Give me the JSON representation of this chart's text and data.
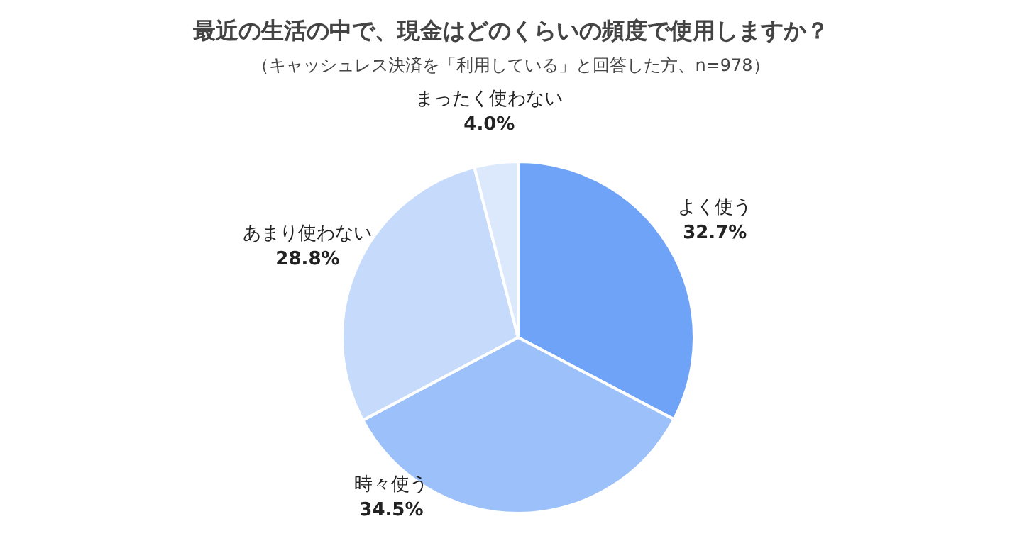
{
  "chart_data": {
    "type": "pie",
    "title": "最近の生活の中で、現金はどのくらいの頻度で使用しますか？",
    "subtitle": "（キャッシュレス決済を「利用している」と回答した方、n=978）",
    "categories": [
      "よく使う",
      "時々使う",
      "あまり使わない",
      "まったく使わない"
    ],
    "values": [
      32.7,
      34.5,
      28.8,
      4.0
    ],
    "colors": [
      "#6fa3f7",
      "#9cc0f9",
      "#c6dbfb",
      "#dce9fd"
    ],
    "value_labels": [
      "32.7%",
      "34.5%",
      "28.8%",
      "4.0%"
    ],
    "legend": false
  }
}
